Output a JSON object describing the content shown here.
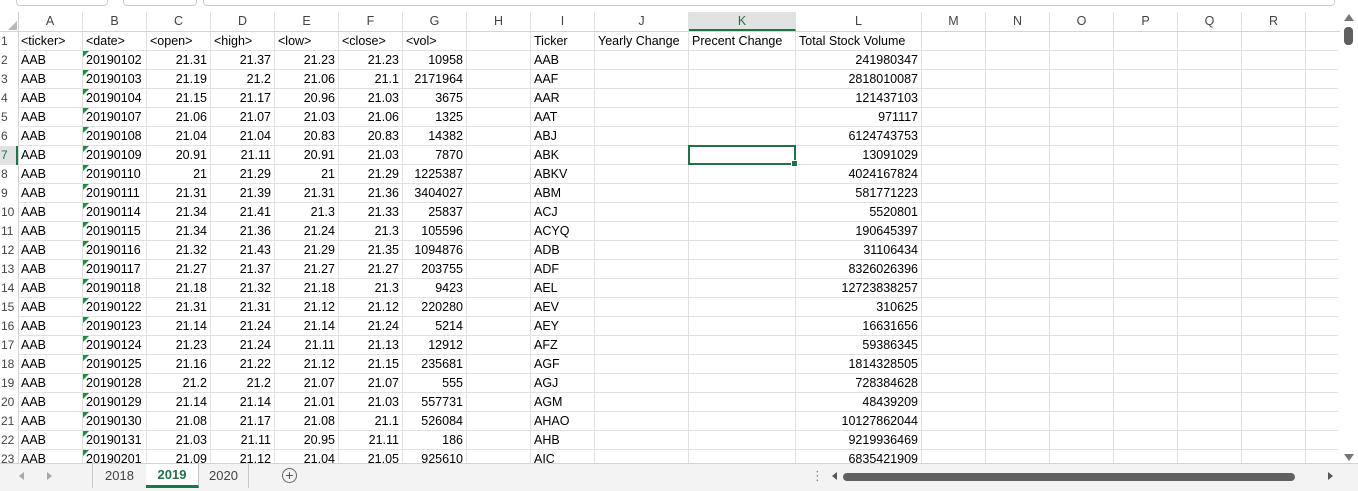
{
  "columns": [
    "A",
    "B",
    "C",
    "D",
    "E",
    "F",
    "G",
    "H",
    "I",
    "J",
    "K",
    "L",
    "M",
    "N",
    "O",
    "P",
    "Q",
    "R"
  ],
  "selected_column": "K",
  "selected_row": "7",
  "row_numbers": [
    "1",
    "2",
    "3",
    "4",
    "5",
    "6",
    "7",
    "8",
    "9",
    "10",
    "11",
    "12",
    "13",
    "14",
    "15",
    "16",
    "17",
    "18",
    "19",
    "20",
    "21",
    "22",
    "23"
  ],
  "header_row": {
    "A": "<ticker>",
    "B": "<date>",
    "C": "<open>",
    "D": "<high>",
    "E": "<low>",
    "F": "<close>",
    "G": "<vol>",
    "I": "Ticker",
    "J": "Yearly Change",
    "K": "Precent Change",
    "L": "Total Stock Volume"
  },
  "rows": [
    {
      "ticker": "AAB",
      "date": "20190102",
      "open": "21.31",
      "high": "21.37",
      "low": "21.23",
      "close": "21.23",
      "vol": "10958",
      "sum_ticker": "AAB",
      "total_volume": "241980347"
    },
    {
      "ticker": "AAB",
      "date": "20190103",
      "open": "21.19",
      "high": "21.2",
      "low": "21.06",
      "close": "21.1",
      "vol": "2171964",
      "sum_ticker": "AAF",
      "total_volume": "2818010087"
    },
    {
      "ticker": "AAB",
      "date": "20190104",
      "open": "21.15",
      "high": "21.17",
      "low": "20.96",
      "close": "21.03",
      "vol": "3675",
      "sum_ticker": "AAR",
      "total_volume": "121437103"
    },
    {
      "ticker": "AAB",
      "date": "20190107",
      "open": "21.06",
      "high": "21.07",
      "low": "21.03",
      "close": "21.06",
      "vol": "1325",
      "sum_ticker": "AAT",
      "total_volume": "971117"
    },
    {
      "ticker": "AAB",
      "date": "20190108",
      "open": "21.04",
      "high": "21.04",
      "low": "20.83",
      "close": "20.83",
      "vol": "14382",
      "sum_ticker": "ABJ",
      "total_volume": "6124743753"
    },
    {
      "ticker": "AAB",
      "date": "20190109",
      "open": "20.91",
      "high": "21.11",
      "low": "20.91",
      "close": "21.03",
      "vol": "7870",
      "sum_ticker": "ABK",
      "total_volume": "13091029"
    },
    {
      "ticker": "AAB",
      "date": "20190110",
      "open": "21",
      "high": "21.29",
      "low": "21",
      "close": "21.29",
      "vol": "1225387",
      "sum_ticker": "ABKV",
      "total_volume": "4024167824"
    },
    {
      "ticker": "AAB",
      "date": "20190111",
      "open": "21.31",
      "high": "21.39",
      "low": "21.31",
      "close": "21.36",
      "vol": "3404027",
      "sum_ticker": "ABM",
      "total_volume": "581771223"
    },
    {
      "ticker": "AAB",
      "date": "20190114",
      "open": "21.34",
      "high": "21.41",
      "low": "21.3",
      "close": "21.33",
      "vol": "25837",
      "sum_ticker": "ACJ",
      "total_volume": "5520801"
    },
    {
      "ticker": "AAB",
      "date": "20190115",
      "open": "21.34",
      "high": "21.36",
      "low": "21.24",
      "close": "21.3",
      "vol": "105596",
      "sum_ticker": "ACYQ",
      "total_volume": "190645397"
    },
    {
      "ticker": "AAB",
      "date": "20190116",
      "open": "21.32",
      "high": "21.43",
      "low": "21.29",
      "close": "21.35",
      "vol": "1094876",
      "sum_ticker": "ADB",
      "total_volume": "31106434"
    },
    {
      "ticker": "AAB",
      "date": "20190117",
      "open": "21.27",
      "high": "21.37",
      "low": "21.27",
      "close": "21.27",
      "vol": "203755",
      "sum_ticker": "ADF",
      "total_volume": "8326026396"
    },
    {
      "ticker": "AAB",
      "date": "20190118",
      "open": "21.18",
      "high": "21.32",
      "low": "21.18",
      "close": "21.3",
      "vol": "9423",
      "sum_ticker": "AEL",
      "total_volume": "12723838257"
    },
    {
      "ticker": "AAB",
      "date": "20190122",
      "open": "21.31",
      "high": "21.31",
      "low": "21.12",
      "close": "21.12",
      "vol": "220280",
      "sum_ticker": "AEV",
      "total_volume": "310625"
    },
    {
      "ticker": "AAB",
      "date": "20190123",
      "open": "21.14",
      "high": "21.24",
      "low": "21.14",
      "close": "21.24",
      "vol": "5214",
      "sum_ticker": "AEY",
      "total_volume": "16631656"
    },
    {
      "ticker": "AAB",
      "date": "20190124",
      "open": "21.23",
      "high": "21.24",
      "low": "21.11",
      "close": "21.13",
      "vol": "12912",
      "sum_ticker": "AFZ",
      "total_volume": "59386345"
    },
    {
      "ticker": "AAB",
      "date": "20190125",
      "open": "21.16",
      "high": "21.22",
      "low": "21.12",
      "close": "21.15",
      "vol": "235681",
      "sum_ticker": "AGF",
      "total_volume": "1814328505"
    },
    {
      "ticker": "AAB",
      "date": "20190128",
      "open": "21.2",
      "high": "21.2",
      "low": "21.07",
      "close": "21.07",
      "vol": "555",
      "sum_ticker": "AGJ",
      "total_volume": "728384628"
    },
    {
      "ticker": "AAB",
      "date": "20190129",
      "open": "21.14",
      "high": "21.14",
      "low": "21.01",
      "close": "21.03",
      "vol": "557731",
      "sum_ticker": "AGM",
      "total_volume": "48439209"
    },
    {
      "ticker": "AAB",
      "date": "20190130",
      "open": "21.08",
      "high": "21.17",
      "low": "21.08",
      "close": "21.1",
      "vol": "526084",
      "sum_ticker": "AHAO",
      "total_volume": "10127862044"
    },
    {
      "ticker": "AAB",
      "date": "20190131",
      "open": "21.03",
      "high": "21.11",
      "low": "20.95",
      "close": "21.11",
      "vol": "186",
      "sum_ticker": "AHB",
      "total_volume": "9219936469"
    },
    {
      "ticker": "AAB",
      "date": "20190201",
      "open": "21.09",
      "high": "21.12",
      "low": "21.04",
      "close": "21.05",
      "vol": "925610",
      "sum_ticker": "AIC",
      "total_volume": "6835421909"
    }
  ],
  "sheet_tabs": [
    "2018",
    "2019",
    "2020"
  ],
  "active_sheet": "2019",
  "add_sheet_symbol": "+",
  "colors": {
    "accent": "#217346",
    "gridline": "#e1e1e1",
    "date_marker": "#1e8e3e"
  },
  "icons": {
    "add_sheet": "plus-circle-icon",
    "nav_prev": "chevron-left-icon",
    "nav_next": "chevron-right-icon"
  }
}
